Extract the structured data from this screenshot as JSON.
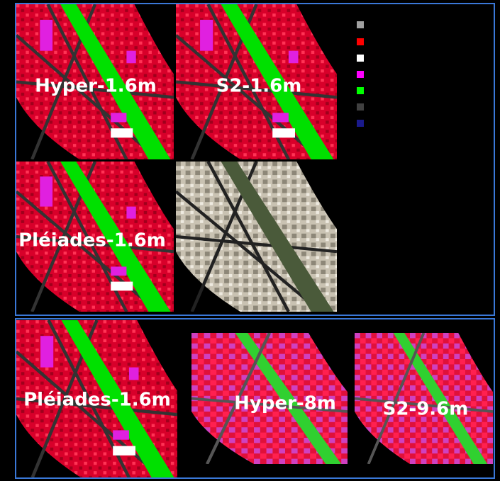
{
  "panels": [
    {
      "label": "Hyper-1.6m"
    },
    {
      "label": "S2-1.6m"
    },
    {
      "label": "Pléiades-1.6m"
    },
    {
      "label": "Pléiades-1.6m"
    },
    {
      "label": "Hyper-8m"
    },
    {
      "label": "S2-9.6m"
    }
  ]
}
